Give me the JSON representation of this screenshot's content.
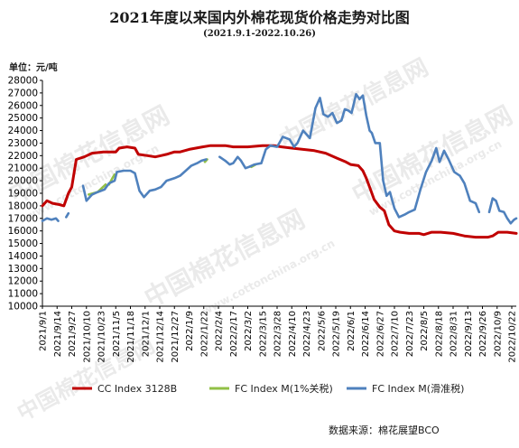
{
  "title": "2021年度以来国内外棉花现货价格走势对比图",
  "subtitle": "(2021.9.1-2022.10.26)",
  "unit_label": "单位：元/吨",
  "source": "数据来源：棉花展望BCO",
  "watermark": {
    "text_cn": "中国棉花信息网",
    "text_url": "www.cottonchina.org.cn"
  },
  "colors": {
    "cc": "#c00000",
    "fc_tax": "#92c046",
    "fc_slide": "#4f81bd",
    "axis": "#000000",
    "watermark": "#d9d9d9"
  },
  "chart_data": {
    "type": "line",
    "title": "2021年度以来国内外棉花现货价格走势对比图",
    "ylim": [
      10000,
      28000
    ],
    "ytick_step": 1000,
    "x_tick_labels": [
      "2021/9/1",
      "2021/9/14",
      "2021/9/27",
      "2021/10/10",
      "2021/10/23",
      "2021/11/5",
      "2021/11/18",
      "2021/12/1",
      "2021/12/14",
      "2021/12/27",
      "2022/1/9",
      "2022/1/22",
      "2022/2/4",
      "2022/2/17",
      "2022/3/2",
      "2022/3/15",
      "2022/3/28",
      "2022/4/10",
      "2022/4/23",
      "2022/5/6",
      "2022/5/19",
      "2022/6/1",
      "2022/6/14",
      "2022/6/27",
      "2022/7/10",
      "2022/7/23",
      "2022/8/5",
      "2022/8/18",
      "2022/8/31",
      "2022/9/13",
      "2022/9/26",
      "2022/10/9",
      "2022/10/22"
    ],
    "legend_position": "bottom",
    "grid": false,
    "series": [
      {
        "name": "CC Index 3128B",
        "color": "#c00000",
        "points": [
          [
            "2021-09-01",
            18000
          ],
          [
            "2021-09-05",
            18400
          ],
          [
            "2021-09-10",
            18200
          ],
          [
            "2021-09-16",
            18100
          ],
          [
            "2021-09-20",
            18000
          ],
          [
            "2021-09-24",
            19000
          ],
          [
            "2021-09-27",
            19500
          ],
          [
            "2021-10-01",
            21700
          ],
          [
            "2021-10-08",
            21900
          ],
          [
            "2021-10-15",
            22200
          ],
          [
            "2021-10-25",
            22300
          ],
          [
            "2021-11-05",
            22300
          ],
          [
            "2021-11-08",
            22600
          ],
          [
            "2021-11-15",
            22700
          ],
          [
            "2021-11-22",
            22600
          ],
          [
            "2021-11-25",
            22100
          ],
          [
            "2021-12-03",
            22000
          ],
          [
            "2021-12-10",
            21900
          ],
          [
            "2021-12-15",
            22000
          ],
          [
            "2021-12-20",
            22100
          ],
          [
            "2021-12-27",
            22300
          ],
          [
            "2022-01-01",
            22300
          ],
          [
            "2022-01-09",
            22500
          ],
          [
            "2022-01-15",
            22600
          ],
          [
            "2022-01-21",
            22700
          ],
          [
            "2022-01-28",
            22800
          ],
          [
            "2022-02-04",
            22800
          ],
          [
            "2022-02-10",
            22800
          ],
          [
            "2022-02-17",
            22700
          ],
          [
            "2022-03-02",
            22700
          ],
          [
            "2022-03-15",
            22800
          ],
          [
            "2022-03-25",
            22800
          ],
          [
            "2022-04-01",
            22700
          ],
          [
            "2022-04-10",
            22600
          ],
          [
            "2022-04-20",
            22500
          ],
          [
            "2022-04-30",
            22400
          ],
          [
            "2022-05-10",
            22200
          ],
          [
            "2022-05-20",
            21800
          ],
          [
            "2022-05-28",
            21500
          ],
          [
            "2022-06-01",
            21300
          ],
          [
            "2022-06-08",
            21200
          ],
          [
            "2022-06-12",
            20800
          ],
          [
            "2022-06-15",
            20200
          ],
          [
            "2022-06-18",
            19500
          ],
          [
            "2022-06-22",
            18500
          ],
          [
            "2022-06-27",
            17900
          ],
          [
            "2022-07-01",
            17600
          ],
          [
            "2022-07-05",
            16500
          ],
          [
            "2022-07-10",
            16000
          ],
          [
            "2022-07-15",
            15900
          ],
          [
            "2022-07-23",
            15800
          ],
          [
            "2022-08-01",
            15800
          ],
          [
            "2022-08-05",
            15700
          ],
          [
            "2022-08-12",
            15900
          ],
          [
            "2022-08-20",
            15900
          ],
          [
            "2022-08-31",
            15800
          ],
          [
            "2022-09-10",
            15600
          ],
          [
            "2022-09-20",
            15500
          ],
          [
            "2022-10-01",
            15500
          ],
          [
            "2022-10-05",
            15600
          ],
          [
            "2022-10-10",
            15900
          ],
          [
            "2022-10-18",
            15900
          ],
          [
            "2022-10-26",
            15800
          ]
        ]
      },
      {
        "name": "FC Index M(1%关税)",
        "color": "#92c046",
        "segments": [
          [
            [
              "2021-10-12",
              18900
            ],
            [
              "2021-10-20",
              19100
            ],
            [
              "2021-10-27",
              19700
            ]
          ],
          [
            [
              "2021-10-30",
              19700
            ],
            [
              "2021-11-02",
              20200
            ],
            [
              "2021-11-04",
              20500
            ]
          ],
          [
            [
              "2022-01-23",
              21500
            ],
            [
              "2022-01-25",
              21700
            ]
          ],
          [
            [
              "2022-03-05",
              21100
            ],
            [
              "2022-03-09",
              21300
            ]
          ]
        ]
      },
      {
        "name": "FC Index M(滑准税)",
        "color": "#4f81bd",
        "segments": [
          [
            [
              "2021-09-01",
              16800
            ],
            [
              "2021-09-05",
              17000
            ],
            [
              "2021-09-09",
              16900
            ],
            [
              "2021-09-13",
              17000
            ],
            [
              "2021-09-15",
              16800
            ]
          ],
          [
            [
              "2021-09-22",
              17100
            ],
            [
              "2021-09-24",
              17400
            ]
          ],
          [
            [
              "2021-10-07",
              19600
            ],
            [
              "2021-10-10",
              18400
            ],
            [
              "2021-10-15",
              18900
            ],
            [
              "2021-10-20",
              19100
            ],
            [
              "2021-10-26",
              19300
            ],
            [
              "2021-10-30",
              19800
            ],
            [
              "2021-11-04",
              20000
            ],
            [
              "2021-11-06",
              20700
            ],
            [
              "2021-11-12",
              20800
            ],
            [
              "2021-11-18",
              20800
            ],
            [
              "2021-11-22",
              20600
            ],
            [
              "2021-11-26",
              19200
            ],
            [
              "2021-11-30",
              18700
            ],
            [
              "2021-12-05",
              19200
            ],
            [
              "2021-12-10",
              19300
            ],
            [
              "2021-12-15",
              19500
            ],
            [
              "2021-12-20",
              20000
            ],
            [
              "2021-12-27",
              20200
            ],
            [
              "2022-01-01",
              20400
            ],
            [
              "2022-01-06",
              20800
            ],
            [
              "2022-01-11",
              21200
            ],
            [
              "2022-01-16",
              21400
            ],
            [
              "2022-01-20",
              21600
            ],
            [
              "2022-01-24",
              21700
            ]
          ],
          [
            [
              "2022-02-05",
              21900
            ],
            [
              "2022-02-10",
              21600
            ],
            [
              "2022-02-14",
              21300
            ],
            [
              "2022-02-17",
              21400
            ],
            [
              "2022-02-21",
              21900
            ],
            [
              "2022-02-24",
              21600
            ],
            [
              "2022-02-28",
              21000
            ],
            [
              "2022-03-03",
              21100
            ],
            [
              "2022-03-08",
              21300
            ],
            [
              "2022-03-14",
              21400
            ],
            [
              "2022-03-18",
              22500
            ],
            [
              "2022-03-22",
              22800
            ],
            [
              "2022-03-28",
              22700
            ],
            [
              "2022-04-02",
              23500
            ],
            [
              "2022-04-08",
              23300
            ],
            [
              "2022-04-12",
              22700
            ],
            [
              "2022-04-15",
              23000
            ],
            [
              "2022-04-20",
              24000
            ],
            [
              "2022-04-26",
              23400
            ],
            [
              "2022-05-01",
              25800
            ],
            [
              "2022-05-05",
              26600
            ],
            [
              "2022-05-08",
              25300
            ],
            [
              "2022-05-12",
              25100
            ],
            [
              "2022-05-16",
              25400
            ],
            [
              "2022-05-20",
              24600
            ],
            [
              "2022-05-24",
              24800
            ],
            [
              "2022-05-27",
              25700
            ],
            [
              "2022-05-30",
              25600
            ],
            [
              "2022-06-02",
              25400
            ],
            [
              "2022-06-06",
              26900
            ],
            [
              "2022-06-09",
              26500
            ],
            [
              "2022-06-12",
              26800
            ],
            [
              "2022-06-15",
              25200
            ],
            [
              "2022-06-18",
              24000
            ],
            [
              "2022-06-20",
              23800
            ],
            [
              "2022-06-23",
              23000
            ],
            [
              "2022-06-27",
              23000
            ],
            [
              "2022-06-30",
              20000
            ],
            [
              "2022-07-03",
              18800
            ],
            [
              "2022-07-06",
              19100
            ],
            [
              "2022-07-10",
              17800
            ],
            [
              "2022-07-14",
              17100
            ],
            [
              "2022-07-19",
              17300
            ],
            [
              "2022-07-23",
              17500
            ],
            [
              "2022-07-28",
              17700
            ],
            [
              "2022-08-02",
              19300
            ],
            [
              "2022-08-07",
              20700
            ],
            [
              "2022-08-12",
              21600
            ],
            [
              "2022-08-16",
              22600
            ],
            [
              "2022-08-19",
              21500
            ],
            [
              "2022-08-23",
              22400
            ],
            [
              "2022-08-27",
              21700
            ],
            [
              "2022-09-01",
              20700
            ],
            [
              "2022-09-06",
              20400
            ],
            [
              "2022-09-10",
              19800
            ],
            [
              "2022-09-15",
              18400
            ],
            [
              "2022-09-20",
              18200
            ],
            [
              "2022-09-23",
              17500
            ]
          ],
          [
            [
              "2022-10-02",
              17500
            ],
            [
              "2022-10-05",
              18600
            ],
            [
              "2022-10-08",
              18400
            ],
            [
              "2022-10-11",
              17600
            ],
            [
              "2022-10-15",
              17500
            ],
            [
              "2022-10-18",
              17000
            ],
            [
              "2022-10-21",
              16600
            ],
            [
              "2022-10-24",
              16900
            ],
            [
              "2022-10-26",
              17000
            ]
          ]
        ]
      }
    ]
  }
}
